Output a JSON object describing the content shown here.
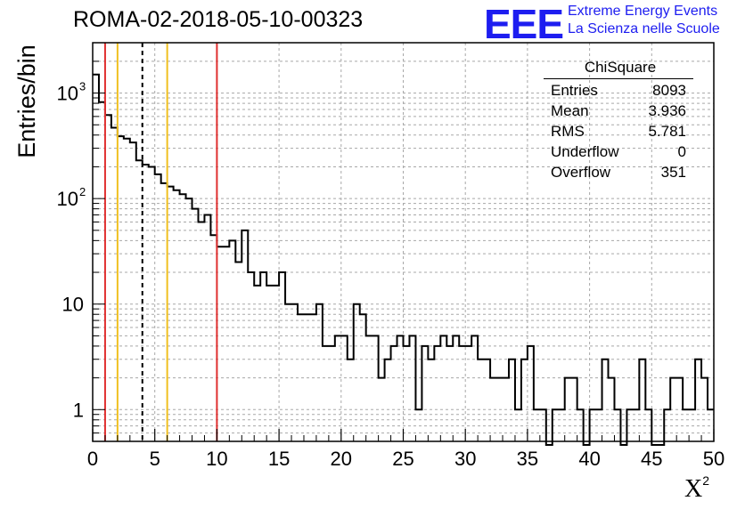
{
  "title": "ROMA-02-2018-05-10-00323",
  "logo": {
    "mark": "EEE",
    "line1": "Extreme Energy Events",
    "line2": "La Scienza nelle Scuole",
    "color": "#1d1df0"
  },
  "stats": {
    "title": "ChiSquare",
    "rows": [
      {
        "label": "Entries",
        "value": "8093"
      },
      {
        "label": "Mean",
        "value": "3.936"
      },
      {
        "label": "RMS",
        "value": "5.781"
      },
      {
        "label": "Underflow",
        "value": "0"
      },
      {
        "label": "Overflow",
        "value": "351"
      }
    ]
  },
  "chart_data": {
    "type": "histogram",
    "title": "ROMA-02-2018-05-10-00323",
    "xlabel": "X",
    "xlabel_superscript": "2",
    "ylabel": "Entries/bin",
    "xlim": [
      0,
      50
    ],
    "ylim": [
      0.5,
      3000
    ],
    "yscale": "log",
    "grid": true,
    "bin_width": 0.5,
    "x_ticks": [
      "0",
      "5",
      "10",
      "15",
      "20",
      "25",
      "30",
      "35",
      "40",
      "45",
      "50"
    ],
    "y_ticks": [
      {
        "value": 1,
        "label": "1"
      },
      {
        "value": 10,
        "label": "10"
      },
      {
        "value": 100,
        "label": "10",
        "exp": "2"
      },
      {
        "value": 1000,
        "label": "10",
        "exp": "3"
      }
    ],
    "values": [
      1500,
      820,
      620,
      470,
      390,
      370,
      340,
      230,
      210,
      200,
      170,
      140,
      130,
      120,
      110,
      100,
      80,
      60,
      70,
      45,
      35,
      35,
      40,
      25,
      50,
      20,
      15,
      20,
      15,
      15,
      20,
      10,
      10,
      8,
      8,
      8,
      10,
      4,
      4,
      5,
      5,
      3,
      10,
      8,
      5,
      5,
      2,
      3,
      4,
      5,
      4,
      5,
      1,
      4,
      3,
      4,
      5,
      4,
      5,
      4,
      4,
      5,
      3,
      3,
      2,
      2,
      2,
      3,
      1,
      3,
      4,
      1,
      1,
      0,
      1,
      1,
      2,
      2,
      1,
      0,
      1,
      1,
      3,
      2,
      1,
      0,
      1,
      1,
      3,
      1,
      0,
      0,
      1,
      2,
      2,
      1,
      1,
      3,
      2,
      1
    ],
    "vertical_lines": [
      {
        "x": 1,
        "color": "#e03030",
        "style": "solid"
      },
      {
        "x": 2,
        "color": "#f0c020",
        "style": "solid"
      },
      {
        "x": 4,
        "color": "#000000",
        "style": "dashed"
      },
      {
        "x": 6,
        "color": "#f0c020",
        "style": "solid"
      },
      {
        "x": 10,
        "color": "#e03030",
        "style": "solid"
      }
    ]
  }
}
